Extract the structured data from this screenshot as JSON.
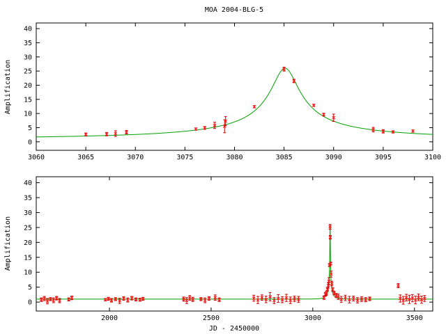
{
  "chart_data": [
    {
      "type": "line",
      "title": "MOA 2004-BLG-5",
      "xlabel": "",
      "ylabel": "Amplification",
      "xlim": [
        3060,
        3100
      ],
      "ylim": [
        -3,
        42
      ],
      "xticks": [
        3060,
        3065,
        3070,
        3075,
        3080,
        3085,
        3090,
        3095,
        3100
      ],
      "yticks": [
        0,
        5,
        10,
        15,
        20,
        25,
        30,
        35,
        40
      ],
      "model": {
        "t0": 3085.1,
        "u0": 0.0385,
        "tE": 37,
        "baseline": 0,
        "color": "#00a000"
      },
      "series": [
        {
          "color": "#ff2020",
          "points": [
            {
              "x": 3065.0,
              "y": 2.6,
              "err": 0.5
            },
            {
              "x": 3067.1,
              "y": 2.7,
              "err": 0.6
            },
            {
              "x": 3068.0,
              "y": 2.9,
              "err": 1.0
            },
            {
              "x": 3069.1,
              "y": 3.4,
              "err": 0.6
            },
            {
              "x": 3076.1,
              "y": 4.5,
              "err": 0.4
            },
            {
              "x": 3077.0,
              "y": 4.9,
              "err": 0.5
            },
            {
              "x": 3078.0,
              "y": 5.8,
              "err": 1.1
            },
            {
              "x": 3079.0,
              "y": 5.5,
              "err": 2.3
            },
            {
              "x": 3079.1,
              "y": 7.3,
              "err": 1.6
            },
            {
              "x": 3082.0,
              "y": 12.4,
              "err": 0.4
            },
            {
              "x": 3085.0,
              "y": 25.7,
              "err": 0.7
            },
            {
              "x": 3086.0,
              "y": 21.5,
              "err": 0.6
            },
            {
              "x": 3088.0,
              "y": 12.9,
              "err": 0.4
            },
            {
              "x": 3089.0,
              "y": 9.6,
              "err": 0.5
            },
            {
              "x": 3090.0,
              "y": 8.5,
              "err": 1.3
            },
            {
              "x": 3094.0,
              "y": 4.3,
              "err": 0.8
            },
            {
              "x": 3095.0,
              "y": 3.7,
              "err": 0.6
            },
            {
              "x": 3096.0,
              "y": 3.5,
              "err": 0.4
            },
            {
              "x": 3098.0,
              "y": 3.8,
              "err": 0.4
            }
          ]
        }
      ]
    },
    {
      "type": "line",
      "title": "",
      "xlabel": "JD - 2450000",
      "ylabel": "Amplification",
      "xlim": [
        1640,
        3590
      ],
      "ylim": [
        -3,
        42
      ],
      "xticks": [
        2000,
        2500,
        3000,
        3500
      ],
      "yticks": [
        0,
        5,
        10,
        15,
        20,
        25,
        30,
        35,
        40
      ],
      "model": {
        "t0": 3085.1,
        "u0": 0.0385,
        "tE": 37,
        "baseline": 0,
        "color": "#00a000"
      },
      "series": [
        {
          "color": "#ff2020",
          "points": [
            {
              "x": 1665,
              "y": 0.8,
              "err": 0.6
            },
            {
              "x": 1680,
              "y": 1.2,
              "err": 0.7
            },
            {
              "x": 1695,
              "y": 0.3,
              "err": 0.9
            },
            {
              "x": 1710,
              "y": 1.0,
              "err": 0.5
            },
            {
              "x": 1725,
              "y": 0.6,
              "err": 0.8
            },
            {
              "x": 1740,
              "y": 1.3,
              "err": 0.6
            },
            {
              "x": 1755,
              "y": 0.5,
              "err": 0.7
            },
            {
              "x": 1800,
              "y": 0.9,
              "err": 0.5
            },
            {
              "x": 1815,
              "y": 1.4,
              "err": 0.6
            },
            {
              "x": 1980,
              "y": 0.8,
              "err": 0.4
            },
            {
              "x": 1995,
              "y": 1.1,
              "err": 0.5
            },
            {
              "x": 2010,
              "y": 0.6,
              "err": 0.6
            },
            {
              "x": 2030,
              "y": 1.0,
              "err": 0.5
            },
            {
              "x": 2050,
              "y": 0.4,
              "err": 0.9
            },
            {
              "x": 2070,
              "y": 1.2,
              "err": 0.6
            },
            {
              "x": 2090,
              "y": 0.7,
              "err": 0.7
            },
            {
              "x": 2110,
              "y": 1.3,
              "err": 0.6
            },
            {
              "x": 2130,
              "y": 0.9,
              "err": 0.5
            },
            {
              "x": 2150,
              "y": 0.8,
              "err": 0.5
            },
            {
              "x": 2165,
              "y": 1.1,
              "err": 0.5
            },
            {
              "x": 2365,
              "y": 1.0,
              "err": 0.7
            },
            {
              "x": 2380,
              "y": 0.5,
              "err": 1.0
            },
            {
              "x": 2395,
              "y": 1.4,
              "err": 0.8
            },
            {
              "x": 2410,
              "y": 0.9,
              "err": 0.7
            },
            {
              "x": 2450,
              "y": 1.0,
              "err": 0.5
            },
            {
              "x": 2470,
              "y": 0.6,
              "err": 0.8
            },
            {
              "x": 2490,
              "y": 1.2,
              "err": 0.6
            },
            {
              "x": 2520,
              "y": 1.5,
              "err": 0.9
            },
            {
              "x": 2540,
              "y": 0.8,
              "err": 0.6
            },
            {
              "x": 2710,
              "y": 1.3,
              "err": 1.0
            },
            {
              "x": 2730,
              "y": 0.7,
              "err": 1.2
            },
            {
              "x": 2750,
              "y": 1.5,
              "err": 0.9
            },
            {
              "x": 2770,
              "y": 0.9,
              "err": 1.1
            },
            {
              "x": 2790,
              "y": 1.8,
              "err": 1.4
            },
            {
              "x": 2810,
              "y": 0.5,
              "err": 1.0
            },
            {
              "x": 2830,
              "y": 1.2,
              "err": 1.3
            },
            {
              "x": 2850,
              "y": 0.8,
              "err": 1.0
            },
            {
              "x": 2870,
              "y": 1.4,
              "err": 1.2
            },
            {
              "x": 2890,
              "y": 0.6,
              "err": 1.1
            },
            {
              "x": 2910,
              "y": 1.1,
              "err": 0.9
            },
            {
              "x": 2930,
              "y": 0.9,
              "err": 1.0
            },
            {
              "x": 3055,
              "y": 1.5,
              "err": 0.6
            },
            {
              "x": 3062,
              "y": 2.6,
              "err": 0.6
            },
            {
              "x": 3067,
              "y": 3.0,
              "err": 0.7
            },
            {
              "x": 3072,
              "y": 4.3,
              "err": 0.6
            },
            {
              "x": 3076,
              "y": 5.6,
              "err": 0.9
            },
            {
              "x": 3079,
              "y": 7.0,
              "err": 1.2
            },
            {
              "x": 3082,
              "y": 12.4,
              "err": 0.5
            },
            {
              "x": 3085,
              "y": 25.2,
              "err": 0.8
            },
            {
              "x": 3086,
              "y": 21.7,
              "err": 0.6
            },
            {
              "x": 3088,
              "y": 12.9,
              "err": 0.5
            },
            {
              "x": 3090,
              "y": 9.4,
              "err": 1.0
            },
            {
              "x": 3094,
              "y": 6.2,
              "err": 0.8
            },
            {
              "x": 3098,
              "y": 4.2,
              "err": 0.6
            },
            {
              "x": 3105,
              "y": 3.0,
              "err": 0.6
            },
            {
              "x": 3115,
              "y": 2.2,
              "err": 0.7
            },
            {
              "x": 3125,
              "y": 1.8,
              "err": 0.9
            },
            {
              "x": 3140,
              "y": 0.9,
              "err": 1.0
            },
            {
              "x": 3160,
              "y": 1.4,
              "err": 0.9
            },
            {
              "x": 3180,
              "y": 0.8,
              "err": 1.1
            },
            {
              "x": 3200,
              "y": 1.2,
              "err": 0.8
            },
            {
              "x": 3220,
              "y": 0.6,
              "err": 0.9
            },
            {
              "x": 3240,
              "y": 1.0,
              "err": 0.8
            },
            {
              "x": 3260,
              "y": 0.8,
              "err": 0.7
            },
            {
              "x": 3280,
              "y": 1.1,
              "err": 0.6
            },
            {
              "x": 3420,
              "y": 5.5,
              "err": 0.7
            },
            {
              "x": 3430,
              "y": 1.2,
              "err": 1.2
            },
            {
              "x": 3445,
              "y": 0.6,
              "err": 1.3
            },
            {
              "x": 3460,
              "y": 1.5,
              "err": 1.1
            },
            {
              "x": 3475,
              "y": 0.9,
              "err": 1.4
            },
            {
              "x": 3490,
              "y": 1.3,
              "err": 1.2
            },
            {
              "x": 3505,
              "y": 0.7,
              "err": 1.3
            },
            {
              "x": 3520,
              "y": 1.6,
              "err": 1.1
            },
            {
              "x": 3535,
              "y": 0.8,
              "err": 1.2
            },
            {
              "x": 3550,
              "y": 1.2,
              "err": 1.0
            }
          ]
        }
      ]
    }
  ]
}
